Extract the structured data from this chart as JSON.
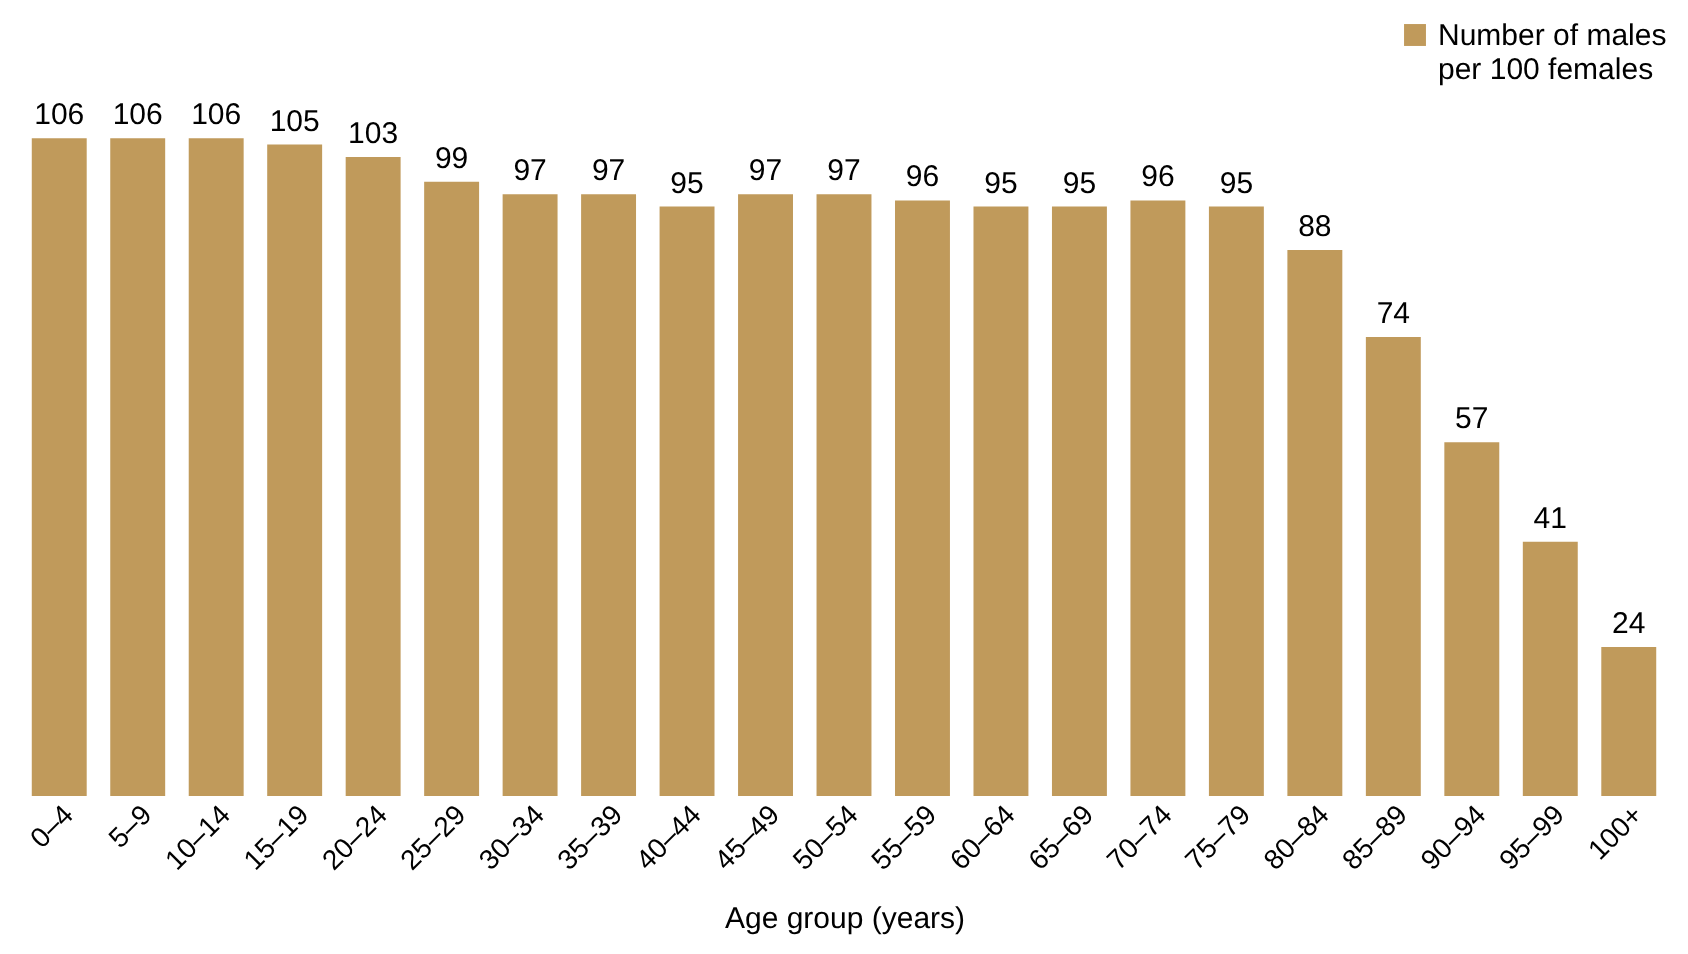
{
  "chart_data": {
    "type": "bar",
    "xlabel": "Age group (years)",
    "categories": [
      "0–4",
      "5–9",
      "10–14",
      "15–19",
      "20–24",
      "25–29",
      "30–34",
      "35–39",
      "40–44",
      "45–49",
      "50–54",
      "55–59",
      "60–64",
      "65–69",
      "70–74",
      "75–79",
      "80–84",
      "85–89",
      "90–94",
      "95–99",
      "100+"
    ],
    "series": [
      {
        "name": "Number of males\nper 100 females",
        "color": "#c09a5b",
        "values": [
          106,
          106,
          106,
          105,
          103,
          99,
          97,
          97,
          95,
          97,
          97,
          96,
          95,
          95,
          96,
          95,
          88,
          74,
          57,
          41,
          24
        ]
      }
    ],
    "data_labels": true,
    "legend": "top right",
    "grid": false
  }
}
